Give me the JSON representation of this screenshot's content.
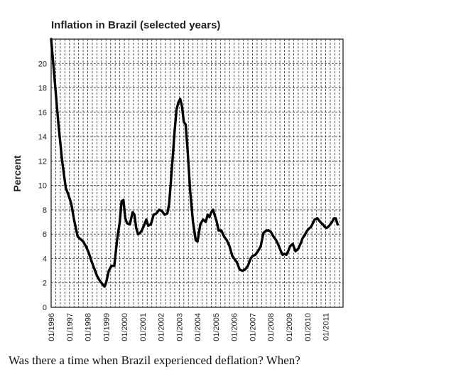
{
  "chart_data": {
    "type": "line",
    "title": "Inflation in Brazil (selected years)",
    "ylabel": "Percent",
    "xlabel": "",
    "ylim": [
      0,
      22
    ],
    "yticks": [
      0,
      2,
      4,
      6,
      8,
      10,
      12,
      14,
      16,
      18,
      20
    ],
    "xticks": [
      "01/1996",
      "01/1997",
      "01/1998",
      "01/1999",
      "01/2000",
      "01/2001",
      "01/2002",
      "01/2003",
      "01/2004",
      "01/2005",
      "01/2006",
      "01/2007",
      "01/2008",
      "01/2009",
      "01/2010",
      "01/2011"
    ],
    "grid": true,
    "series": [
      {
        "x": [
          1996.0,
          1996.2,
          1996.4,
          1996.6,
          1996.8,
          1996.95,
          1997.1,
          1997.25,
          1997.45,
          1997.6,
          1997.75,
          1997.9,
          1998.05,
          1998.2,
          1998.35,
          1998.5,
          1998.65,
          1998.8,
          1998.92,
          1999.0,
          1999.15,
          1999.3,
          1999.45,
          1999.6,
          1999.75,
          1999.85,
          1999.95,
          2000.05,
          2000.15,
          2000.3,
          2000.45,
          2000.55,
          2000.65,
          2000.75,
          2000.85,
          2000.95,
          2001.1,
          2001.2,
          2001.3,
          2001.45,
          2001.6,
          2001.75,
          2001.9,
          2002.05,
          2002.2,
          2002.35,
          2002.45,
          2002.55,
          2002.65,
          2002.75,
          2002.85,
          2002.95,
          2003.05,
          2003.15,
          2003.25,
          2003.35,
          2003.45,
          2003.6,
          2003.75,
          2003.9,
          2004.0,
          2004.15,
          2004.3,
          2004.45,
          2004.55,
          2004.65,
          2004.75,
          2004.85,
          2004.95,
          2005.05,
          2005.15,
          2005.3,
          2005.45,
          2005.6,
          2005.75,
          2005.9,
          2006.0,
          2006.15,
          2006.3,
          2006.45,
          2006.6,
          2006.75,
          2006.9,
          2007.0,
          2007.15,
          2007.3,
          2007.45,
          2007.6,
          2007.75,
          2007.9,
          2008.0,
          2008.15,
          2008.3,
          2008.45,
          2008.55,
          2008.65,
          2008.75,
          2008.85,
          2008.95,
          2009.05,
          2009.2,
          2009.35,
          2009.5,
          2009.65,
          2009.75,
          2009.85,
          2009.95,
          2010.05,
          2010.2,
          2010.3,
          2010.4,
          2010.55,
          2010.7,
          2010.85,
          2010.95,
          2011.05,
          2011.2,
          2011.35,
          2011.45,
          2011.55,
          2011.65
        ],
        "y": [
          22.0,
          18.5,
          15.0,
          12.0,
          9.8,
          9.2,
          8.5,
          7.2,
          5.8,
          5.6,
          5.4,
          5.0,
          4.5,
          3.8,
          3.2,
          2.6,
          2.2,
          1.9,
          1.7,
          2.0,
          3.0,
          3.4,
          3.4,
          5.5,
          7.0,
          8.7,
          8.8,
          7.3,
          6.9,
          6.8,
          7.8,
          7.6,
          6.5,
          6.0,
          6.1,
          6.3,
          6.8,
          7.2,
          6.7,
          6.8,
          7.6,
          7.7,
          8.0,
          7.9,
          7.6,
          7.7,
          8.5,
          10.5,
          12.5,
          14.5,
          16.2,
          16.8,
          17.1,
          16.5,
          15.2,
          15.0,
          13.0,
          9.5,
          7.0,
          5.5,
          5.4,
          6.8,
          7.2,
          7.0,
          7.6,
          7.4,
          7.8,
          8.0,
          7.5,
          7.0,
          6.3,
          6.3,
          5.8,
          5.5,
          5.0,
          4.2,
          4.0,
          3.7,
          3.1,
          3.0,
          3.1,
          3.4,
          4.0,
          4.2,
          4.3,
          4.6,
          5.0,
          6.1,
          6.3,
          6.3,
          6.2,
          5.8,
          5.5,
          5.0,
          4.6,
          4.3,
          4.4,
          4.3,
          4.6,
          5.0,
          5.2,
          4.6,
          4.8,
          5.3,
          5.7,
          5.9,
          6.2,
          6.4,
          6.6,
          6.9,
          7.2,
          7.3,
          7.0,
          6.8,
          6.6,
          6.5,
          6.7,
          7.0,
          7.3,
          7.3,
          6.8
        ]
      }
    ]
  },
  "question": "Was there a time when Brazil experienced deflation? When?"
}
